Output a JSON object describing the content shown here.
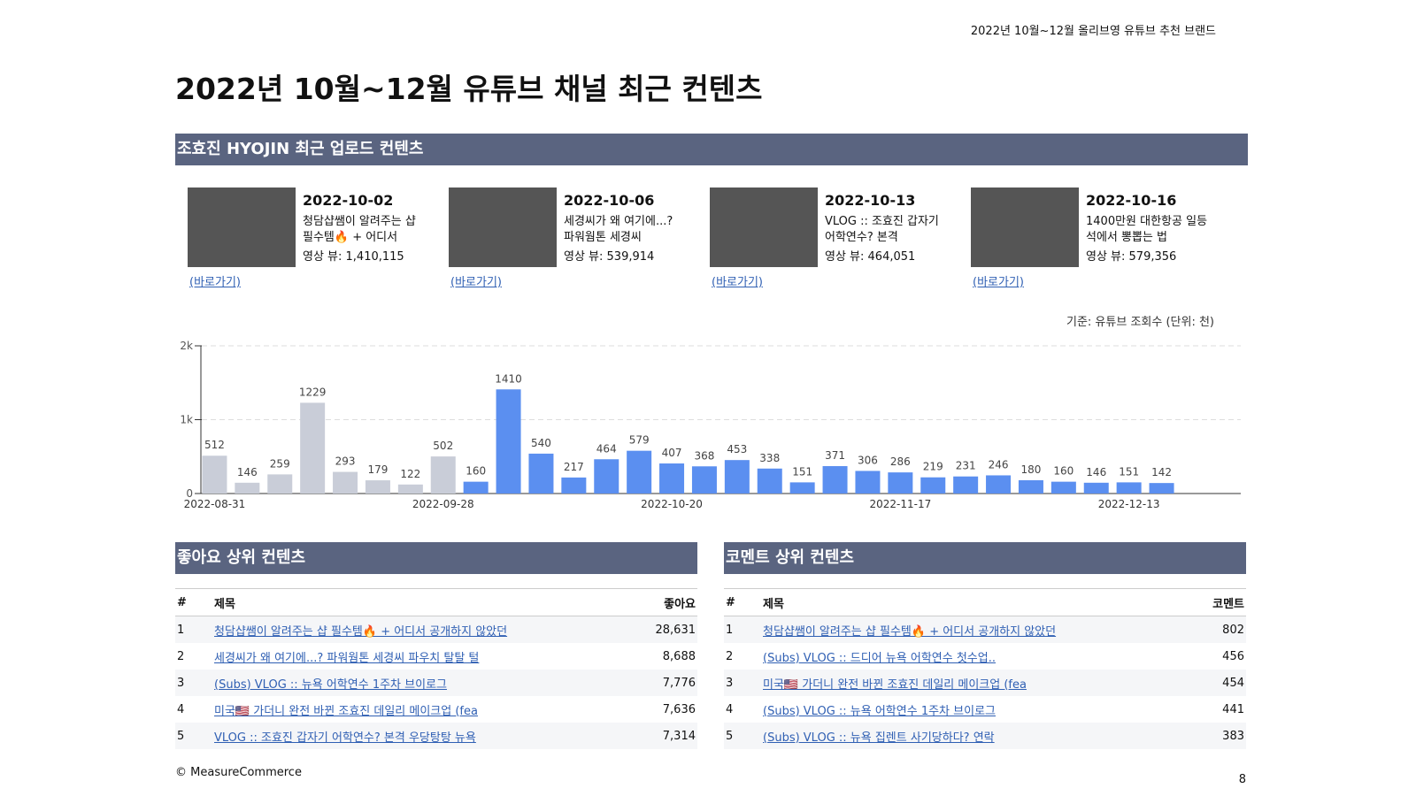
{
  "header": {
    "top_right": "2022년 10월~12월 올리브영 유튜브 추천 브랜드",
    "title": "2022년 10월~12월 유튜브 채널 최근 컨텐츠"
  },
  "section": {
    "title": "조효진 HYOJIN 최근 업로드 컨텐츠"
  },
  "videos": [
    {
      "date": "2022-10-02",
      "title_lines": [
        "청담샵쌤이 알려주는 샵",
        "필수템🔥 + 어디서"
      ],
      "views": "영상 뷰: 1,410,115",
      "link": "(바로가기)"
    },
    {
      "date": "2022-10-06",
      "title_lines": [
        "세경씨가 왜 여기에...?",
        "파워웜톤 세경씨"
      ],
      "views": "영상 뷰: 539,914",
      "link": "(바로가기)"
    },
    {
      "date": "2022-10-13",
      "title_lines": [
        "VLOG :: 조효진 갑자기",
        "어학연수? 본격"
      ],
      "views": "영상 뷰: 464,051",
      "link": "(바로가기)"
    },
    {
      "date": "2022-10-16",
      "title_lines": [
        "1400만원 대한항공 일등",
        "석에서 뽕뽑는 법"
      ],
      "views": "영상 뷰: 579,356",
      "link": "(바로가기)"
    }
  ],
  "chart_note": "기준: 유튜브 조회수 (단위: 천)",
  "chart_data": {
    "type": "bar",
    "categories": [
      "2022-08-31",
      null,
      null,
      null,
      null,
      null,
      null,
      "2022-09-28",
      null,
      null,
      null,
      null,
      null,
      null,
      "2022-10-20",
      null,
      null,
      null,
      null,
      null,
      null,
      "2022-11-17",
      null,
      null,
      null,
      null,
      null,
      null,
      "2022-12-13",
      null
    ],
    "values": [
      512,
      146,
      259,
      1229,
      293,
      179,
      122,
      502,
      160,
      1410,
      540,
      217,
      464,
      579,
      407,
      368,
      453,
      338,
      151,
      371,
      306,
      286,
      219,
      231,
      246,
      180,
      160,
      146,
      151,
      142
    ],
    "colors": [
      "#c9cdd8",
      "#c9cdd8",
      "#c9cdd8",
      "#c9cdd8",
      "#c9cdd8",
      "#c9cdd8",
      "#c9cdd8",
      "#c9cdd8",
      "#5b8ff0",
      "#5b8ff0",
      "#5b8ff0",
      "#5b8ff0",
      "#5b8ff0",
      "#5b8ff0",
      "#5b8ff0",
      "#5b8ff0",
      "#5b8ff0",
      "#5b8ff0",
      "#5b8ff0",
      "#5b8ff0",
      "#5b8ff0",
      "#5b8ff0",
      "#5b8ff0",
      "#5b8ff0",
      "#5b8ff0",
      "#5b8ff0",
      "#5b8ff0",
      "#5b8ff0",
      "#5b8ff0",
      "#5b8ff0"
    ],
    "ylim": [
      0,
      2000
    ],
    "yticks": [
      0,
      {
        "value": 1000,
        "label": "1k"
      },
      {
        "value": 2000,
        "label": "2k"
      }
    ],
    "grid": true
  },
  "tables": [
    {
      "title": "좋아요 상위 컨텐츠",
      "columns": [
        "#",
        "제목",
        "좋아요"
      ],
      "rows": [
        [
          "1",
          "청담샵쌤이 알려주는 샵 필수템🔥 + 어디서 공개하지 않았던",
          "28,631"
        ],
        [
          "2",
          "세경씨가 왜 여기에...? 파워웜톤 세경씨 파우치 탈탈 털",
          "8,688"
        ],
        [
          "3",
          "(Subs) VLOG :: 뉴욕 어학연수 1주차 브이로그",
          "7,776"
        ],
        [
          "4",
          "미국🇺🇸 가더니 완전 바뀐 조효진 데일리 메이크업 (fea",
          "7,636"
        ],
        [
          "5",
          "VLOG :: 조효진 갑자기 어학연수? 본격 우당탕탕 뉴욕",
          "7,314"
        ]
      ]
    },
    {
      "title": "코멘트 상위 컨텐츠",
      "columns": [
        "#",
        "제목",
        "코멘트"
      ],
      "rows": [
        [
          "1",
          "청담샵쌤이 알려주는 샵 필수템🔥 + 어디서 공개하지 않았던",
          "802"
        ],
        [
          "2",
          "(Subs) VLOG :: 드디어 뉴욕 어학연수 첫수업..",
          "456"
        ],
        [
          "3",
          "미국🇺🇸 가더니 완전 바뀐 조효진 데일리 메이크업 (fea",
          "454"
        ],
        [
          "4",
          "(Subs) VLOG :: 뉴욕 어학연수 1주차 브이로그",
          "441"
        ],
        [
          "5",
          "(Subs) VLOG ::  뉴욕 집렌트 사기당하다? 연락",
          "383"
        ]
      ]
    }
  ],
  "footer": {
    "copyright": "© MeasureCommerce",
    "page": "8"
  }
}
